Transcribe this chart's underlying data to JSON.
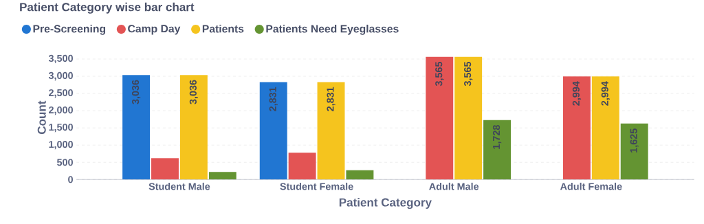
{
  "chart_data": {
    "type": "bar",
    "title": "Patient Category wise bar chart",
    "xlabel": "Patient Category",
    "ylabel": "Count",
    "categories": [
      "Student Male",
      "Student Female",
      "Adult Male",
      "Adult Female"
    ],
    "series": [
      {
        "name": "Pre-Screening",
        "color": "#2176d2",
        "values": [
          3036,
          2831,
          null,
          null
        ],
        "value_labels": [
          "3,036",
          "2,831",
          null,
          null
        ]
      },
      {
        "name": "Camp Day",
        "color": "#e35454",
        "values": [
          620,
          780,
          3565,
          2994
        ],
        "value_labels": [
          null,
          null,
          "3,565",
          "2,994"
        ]
      },
      {
        "name": "Patients",
        "color": "#f5c41e",
        "values": [
          3036,
          2831,
          3565,
          2994
        ],
        "value_labels": [
          "3,036",
          "2,831",
          "3,565",
          "2,994"
        ]
      },
      {
        "name": "Patients Need Eyeglasses",
        "color": "#649432",
        "values": [
          220,
          270,
          1728,
          1625
        ],
        "value_labels": [
          null,
          null,
          "1,728",
          "1,625"
        ]
      }
    ],
    "ylim": [
      0,
      3600
    ],
    "yticks": [
      {
        "value": 0,
        "label": "0"
      },
      {
        "value": 500,
        "label": "500"
      },
      {
        "value": 1000,
        "label": "1,000"
      },
      {
        "value": 1500,
        "label": "1,500"
      },
      {
        "value": 2000,
        "label": "2,000"
      },
      {
        "value": 2500,
        "label": "2,500"
      },
      {
        "value": 3000,
        "label": "3,000"
      },
      {
        "value": 3500,
        "label": "3,500"
      }
    ],
    "grid": "y",
    "legend": "top left",
    "marker": "circle"
  }
}
